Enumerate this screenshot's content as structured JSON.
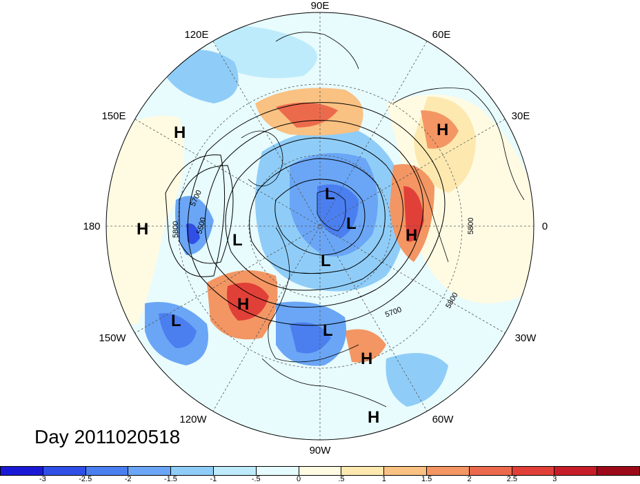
{
  "title": "Day 2011020518",
  "longitude_labels": [
    "90E",
    "60E",
    "30E",
    "0",
    "30W",
    "60W",
    "90W",
    "120W",
    "150W",
    "180",
    "150E",
    "120E"
  ],
  "pressure_centers": [
    {
      "type": "H",
      "label": "H"
    },
    {
      "type": "H",
      "label": "H"
    },
    {
      "type": "H",
      "label": "H"
    },
    {
      "type": "H",
      "label": "H"
    },
    {
      "type": "H",
      "label": "H"
    },
    {
      "type": "H",
      "label": "H"
    },
    {
      "type": "H",
      "label": "H"
    },
    {
      "type": "L",
      "label": "L"
    },
    {
      "type": "L",
      "label": "L"
    },
    {
      "type": "L",
      "label": "L"
    },
    {
      "type": "L",
      "label": "L"
    },
    {
      "type": "L",
      "label": "L"
    },
    {
      "type": "L",
      "label": "L"
    }
  ],
  "contour_labels": [
    "5700",
    "5800",
    "5500",
    "5700",
    "5800",
    "5800"
  ],
  "colorbar": {
    "colors": [
      "#1a1ad6",
      "#2f4fe6",
      "#4b7ff0",
      "#6aa6f5",
      "#8fcdf8",
      "#bdebfb",
      "#e6fbfd",
      "#fffbe3",
      "#fde9b0",
      "#f9c182",
      "#f39663",
      "#ec6a4c",
      "#e04037",
      "#c61d28",
      "#9c0a1a"
    ],
    "ticks": [
      "-3",
      "-2.5",
      "-2",
      "-1.5",
      "-1",
      "-.5",
      "0",
      ".5",
      "1",
      "1.5",
      "2",
      "2.5",
      "3"
    ]
  }
}
